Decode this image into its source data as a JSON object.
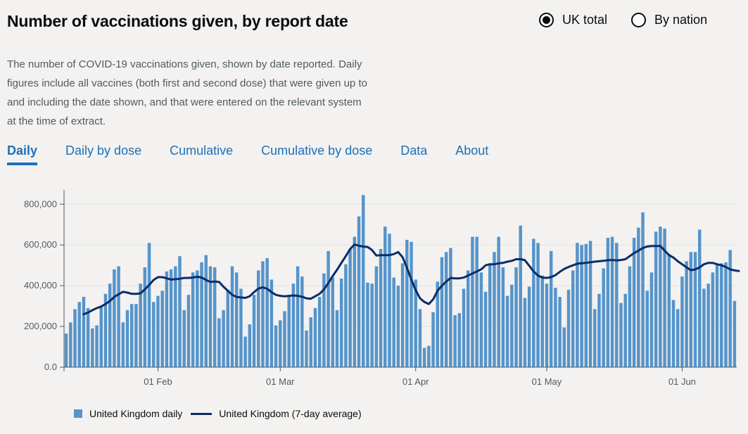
{
  "header": {
    "title": "Number of vaccinations given, by report date",
    "description": "The number of COVID-19 vaccinations given, shown by date reported. Daily figures include all vaccines (both first and second dose) that were given up to and including the date shown, and that were entered on the relevant system at the time of extract."
  },
  "radios": [
    {
      "label": "UK total",
      "selected": true
    },
    {
      "label": "By nation",
      "selected": false
    }
  ],
  "tabs": [
    {
      "label": "Daily",
      "active": true
    },
    {
      "label": "Daily by dose",
      "active": false
    },
    {
      "label": "Cumulative",
      "active": false
    },
    {
      "label": "Cumulative by dose",
      "active": false
    },
    {
      "label": "Data",
      "active": false
    },
    {
      "label": "About",
      "active": false
    }
  ],
  "legend": {
    "bars_label": "United Kingdom daily",
    "line_label": "United Kingdom (7-day average)"
  },
  "colors": {
    "bar": "#5694ca",
    "line": "#0b2c6a",
    "link": "#1d70b8"
  },
  "chart_data": {
    "type": "bar",
    "x_start": "2021-01-11",
    "y_ticks": [
      "0.0",
      "200,000",
      "400,000",
      "600,000",
      "800,000"
    ],
    "y_tick_values": [
      0,
      200000,
      400000,
      600000,
      800000
    ],
    "ylim": [
      0,
      870000
    ],
    "x_ticks": [
      "01 Feb",
      "01 Mar",
      "01 Apr",
      "01 May",
      "01 Jun"
    ],
    "x_tick_dates": [
      "2021-02-01",
      "2021-03-01",
      "2021-04-01",
      "2021-05-01",
      "2021-06-01"
    ],
    "series": [
      {
        "name": "United Kingdom daily",
        "values": [
          165000,
          220000,
          285000,
          320000,
          345000,
          290000,
          190000,
          205000,
          300000,
          360000,
          410000,
          480000,
          495000,
          220000,
          280000,
          310000,
          310000,
          410000,
          490000,
          610000,
          320000,
          350000,
          375000,
          470000,
          480000,
          495000,
          545000,
          280000,
          355000,
          465000,
          475000,
          515000,
          550000,
          495000,
          490000,
          240000,
          280000,
          380000,
          495000,
          465000,
          385000,
          150000,
          210000,
          355000,
          475000,
          520000,
          535000,
          430000,
          205000,
          230000,
          275000,
          350000,
          410000,
          495000,
          445000,
          180000,
          245000,
          290000,
          345000,
          460000,
          570000,
          440000,
          280000,
          435000,
          505000,
          580000,
          640000,
          740000,
          845000,
          415000,
          410000,
          495000,
          580000,
          690000,
          655000,
          440000,
          400000,
          510000,
          625000,
          615000,
          430000,
          285000,
          95000,
          105000,
          270000,
          420000,
          540000,
          565000,
          585000,
          255000,
          265000,
          385000,
          475000,
          640000,
          640000,
          465000,
          370000,
          510000,
          565000,
          640000,
          490000,
          350000,
          405000,
          490000,
          695000,
          340000,
          395000,
          630000,
          610000,
          450000,
          410000,
          570000,
          390000,
          345000,
          195000,
          380000,
          475000,
          610000,
          600000,
          605000,
          620000,
          285000,
          360000,
          485000,
          635000,
          640000,
          610000,
          315000,
          360000,
          495000,
          635000,
          685000,
          760000,
          375000,
          465000,
          665000,
          690000,
          680000,
          555000,
          330000,
          285000,
          445000,
          520000,
          565000,
          565000,
          675000,
          385000,
          410000,
          465000,
          505000,
          510000,
          515000,
          575000,
          325000
        ]
      },
      {
        "name": "United Kingdom (7-day average)",
        "start_index": 4,
        "values": [
          260000,
          268000,
          280000,
          290000,
          298000,
          310000,
          325000,
          345000,
          358000,
          370000,
          366000,
          360000,
          360000,
          362000,
          382000,
          404000,
          428000,
          442000,
          442000,
          436000,
          430000,
          432000,
          434000,
          438000,
          438000,
          440000,
          444000,
          440000,
          428000,
          418000,
          420000,
          418000,
          395000,
          375000,
          355000,
          345000,
          342000,
          340000,
          348000,
          368000,
          386000,
          392000,
          385000,
          368000,
          355000,
          350000,
          348000,
          350000,
          352000,
          350000,
          346000,
          338000,
          336000,
          348000,
          360000,
          382000,
          413000,
          447000,
          478000,
          512000,
          545000,
          580000,
          602000,
          596000,
          592000,
          590000,
          575000,
          548000,
          550000,
          550000,
          550000,
          555000,
          565000,
          540000,
          488000,
          430000,
          378000,
          338000,
          320000,
          310000,
          333000,
          375000,
          400000,
          420000,
          438000,
          436000,
          436000,
          440000,
          450000,
          460000,
          470000,
          480000,
          500000,
          505000,
          505000,
          510000,
          512000,
          518000,
          522000,
          530000,
          530000,
          525000,
          498000,
          470000,
          450000,
          440000,
          438000,
          442000,
          452000,
          468000,
          482000,
          492000,
          500000,
          508000,
          510000,
          512000,
          515000,
          518000,
          520000,
          522000,
          525000,
          526000,
          524000,
          526000,
          530000,
          545000,
          560000,
          572000,
          585000,
          592000,
          595000,
          595000,
          595000,
          572000,
          550000,
          538000,
          520000,
          505000,
          490000,
          476000,
          480000,
          490000,
          505000,
          512000,
          512000,
          505000,
          500000,
          492000,
          480000,
          475000,
          472000
        ]
      }
    ]
  }
}
